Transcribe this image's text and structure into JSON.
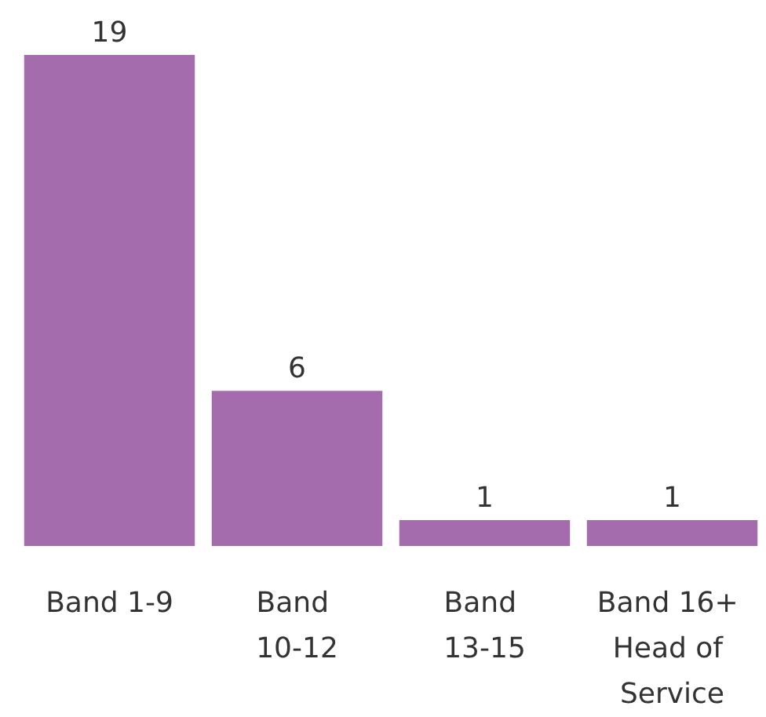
{
  "chart_data": {
    "type": "bar",
    "categories": [
      "Band 1-9",
      "Band 10-12",
      "Band 13-15",
      "Band 16+ Head of Service"
    ],
    "values": [
      19,
      6,
      1,
      1
    ],
    "color": "#a56cad",
    "data_labels": true
  }
}
